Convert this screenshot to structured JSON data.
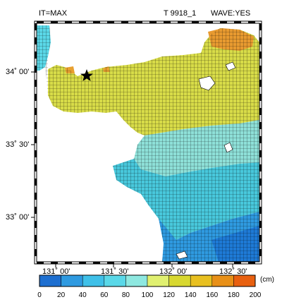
{
  "header": {
    "left": "IT=MAX",
    "center": "T 9918_1",
    "right": "WAVE:YES"
  },
  "axes": {
    "lat_labels": [
      "34˚ 00'",
      "33˚ 30'",
      "33˚ 00'"
    ],
    "lon_labels": [
      "131˚ 00'",
      "131˚ 30'",
      "132˚ 00'",
      "132˚ 30'"
    ]
  },
  "colorbar": {
    "unit": "(cm)",
    "ticks": [
      "0",
      "20",
      "40",
      "60",
      "80",
      "100",
      "120",
      "140",
      "160",
      "180",
      "200"
    ],
    "colors": [
      "#1e6fd0",
      "#2f9ae0",
      "#3fc0e8",
      "#5ad8e8",
      "#8ee8e0",
      "#e0f070",
      "#d8d830",
      "#e8c020",
      "#e89018",
      "#e86010"
    ]
  },
  "legend": {
    "marker": "star-icon"
  }
}
